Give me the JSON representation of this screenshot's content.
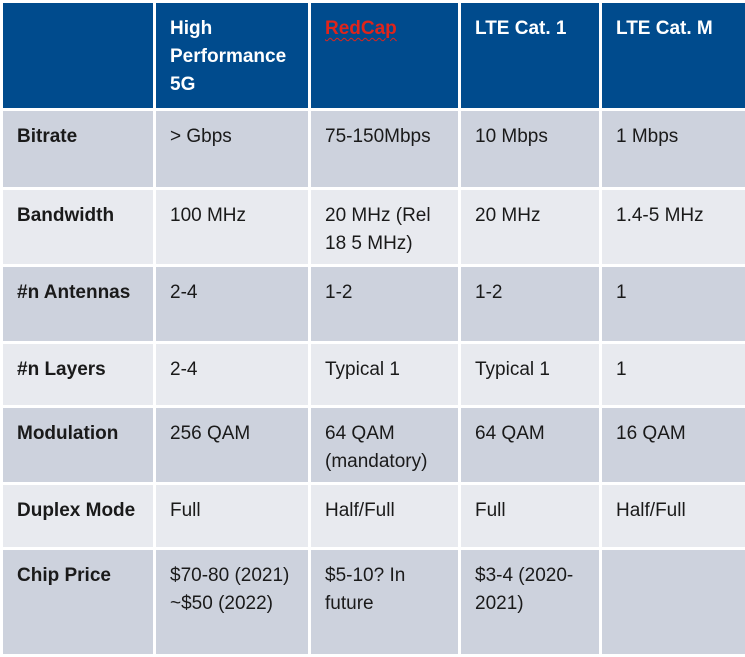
{
  "header": {
    "corner": "",
    "col1": "High Performance 5G",
    "col2": "RedCap",
    "col3": "LTE Cat. 1",
    "col4": "LTE Cat. M"
  },
  "rows": [
    {
      "label": "Bitrate",
      "c1": "> Gbps",
      "c2": "75-150Mbps",
      "c3": "10 Mbps",
      "c4": "1 Mbps"
    },
    {
      "label": "Bandwidth",
      "c1": "100 MHz",
      "c2": "20 MHz (Rel 18 5 MHz)",
      "c3": "20 MHz",
      "c4": "1.4-5 MHz"
    },
    {
      "label": "#n Antennas",
      "c1": "2-4",
      "c2": "1-2",
      "c3": "1-2",
      "c4": "1"
    },
    {
      "label": "#n Layers",
      "c1": "2-4",
      "c2": "Typical 1",
      "c3": "Typical 1",
      "c4": "1"
    },
    {
      "label": "Modulation",
      "c1": "256 QAM",
      "c2": "64 QAM (mandatory)",
      "c3": "64 QAM",
      "c4": "16 QAM"
    },
    {
      "label": "Duplex Mode",
      "c1": "Full",
      "c2": "Half/Full",
      "c3": "Full",
      "c4": "Half/Full"
    },
    {
      "label": "Chip Price",
      "c1": "$70-80 (2021) ~$50 (2022)",
      "c2": "$5-10? In future",
      "c3": "$3-4 (2020-2021)",
      "c4": ""
    }
  ],
  "colors": {
    "header_bg": "#004b8d",
    "row_odd": "#cdd2dd",
    "row_even": "#e8eaef",
    "redcap_text": "#e0241b"
  }
}
